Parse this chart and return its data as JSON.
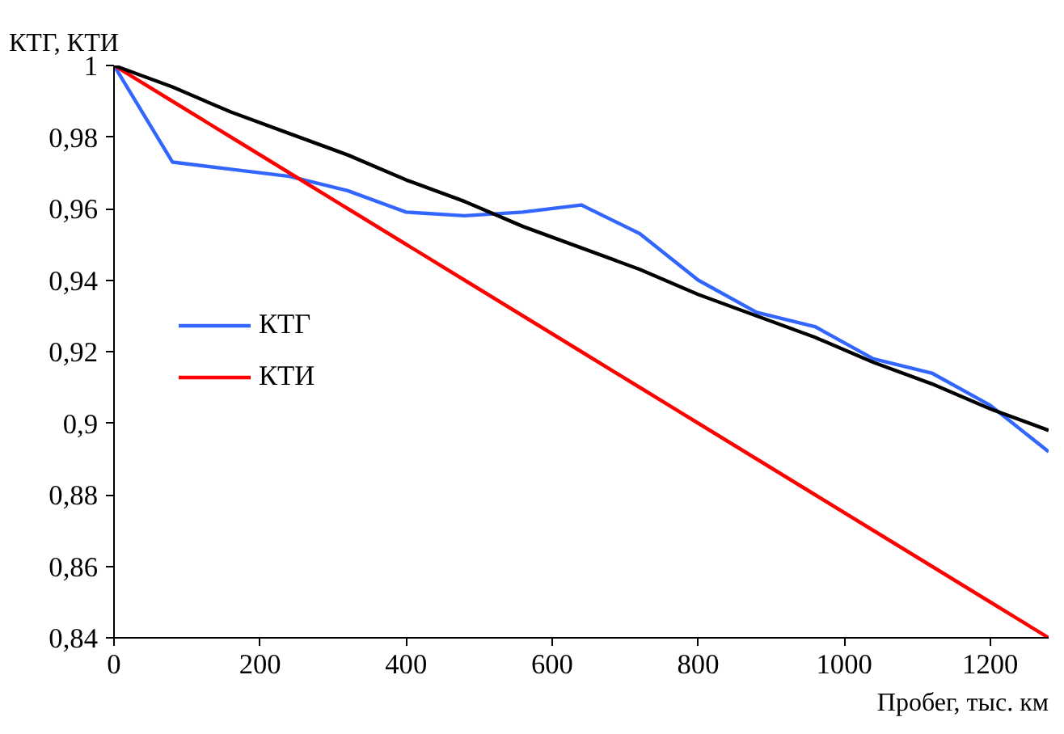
{
  "chart_data": {
    "type": "line",
    "xlabel": "Пробег, тыс. км",
    "ylabel": "КТГ, КТИ",
    "x": [
      0,
      80,
      160,
      240,
      320,
      400,
      480,
      560,
      640,
      720,
      800,
      880,
      960,
      1040,
      1120,
      1200,
      1280
    ],
    "series": [
      {
        "name": "КТГ",
        "color": "#3366ff",
        "values": [
          1,
          0.973,
          0.971,
          0.969,
          0.965,
          0.959,
          0.958,
          0.959,
          0.961,
          0.953,
          0.94,
          0.931,
          0.927,
          0.918,
          0.914,
          0.905,
          0.892
        ]
      },
      {
        "name": "КТИ",
        "color": "#ff0000",
        "values": [
          1,
          0.99,
          0.98,
          0.97,
          0.96,
          0.95,
          0.94,
          0.93,
          0.92,
          0.91,
          0.9,
          0.89,
          0.88,
          0.87,
          0.86,
          0.85,
          0.84
        ]
      },
      {
        "color": "#000000",
        "values": [
          1,
          0.994,
          0.987,
          0.981,
          0.975,
          0.968,
          0.962,
          0.955,
          0.949,
          0.943,
          0.936,
          0.93,
          0.924,
          0.917,
          0.911,
          0.904,
          0.898
        ]
      }
    ],
    "xlim": [
      0,
      1280
    ],
    "xticks": [
      0,
      200,
      400,
      600,
      800,
      1000,
      1200
    ],
    "ylim": [
      0.84,
      1
    ],
    "yticks": [
      {
        "value": 0.84,
        "label": "0,84"
      },
      {
        "value": 0.86,
        "label": "0,86"
      },
      {
        "value": 0.88,
        "label": "0,88"
      },
      {
        "value": 0.9,
        "label": "0,9"
      },
      {
        "value": 0.92,
        "label": "0,92"
      },
      {
        "value": 0.94,
        "label": "0,94"
      },
      {
        "value": 0.96,
        "label": "0,96"
      },
      {
        "value": 0.98,
        "label": "0,98"
      },
      {
        "value": 1,
        "label": "1"
      }
    ],
    "grid": false,
    "legend": "left",
    "marker": "none",
    "line_style": "solid"
  }
}
